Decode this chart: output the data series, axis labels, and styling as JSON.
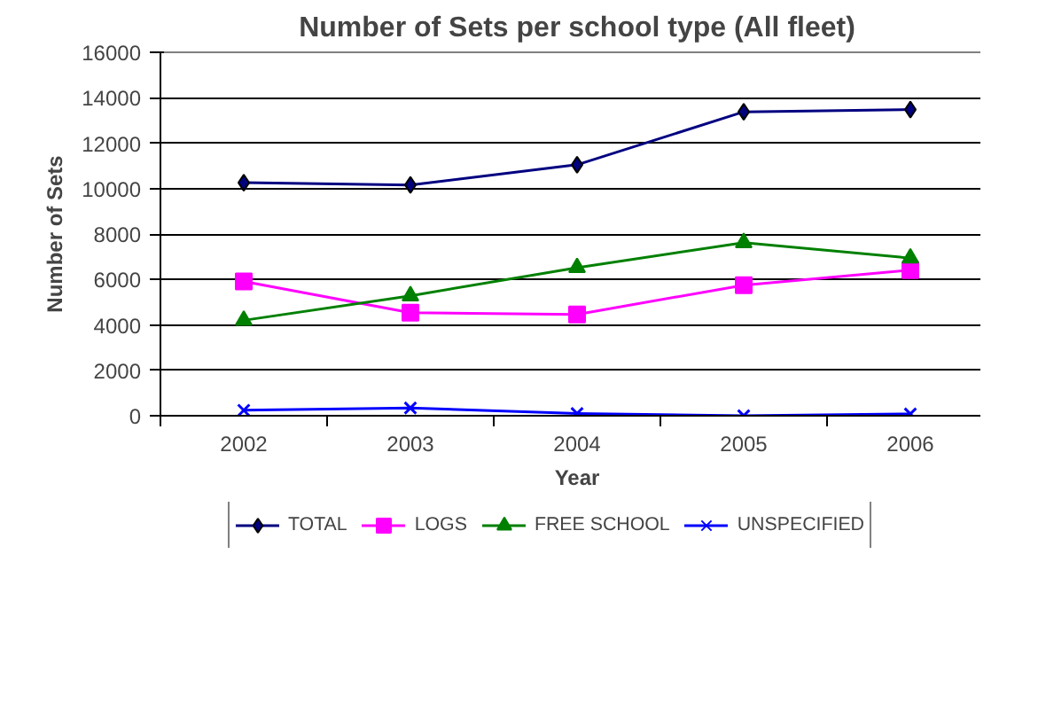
{
  "chart_data": {
    "type": "line",
    "title": "Number of Sets per school type (All fleet)",
    "xlabel": "Year",
    "ylabel": "Number of Sets",
    "categories": [
      "2002",
      "2003",
      "2004",
      "2005",
      "2006"
    ],
    "ylim": [
      0,
      16000
    ],
    "yticks": [
      0,
      2000,
      4000,
      6000,
      8000,
      10000,
      12000,
      14000,
      16000
    ],
    "grid": "y",
    "legend": "bottom",
    "series": [
      {
        "name": "TOTAL",
        "color": "#000080",
        "marker": "diamond",
        "values": [
          10260,
          10160,
          11050,
          13380,
          13480
        ]
      },
      {
        "name": "LOGS",
        "color": "#ff00ff",
        "marker": "square",
        "values": [
          5910,
          4540,
          4460,
          5750,
          6410
        ]
      },
      {
        "name": "FREE SCHOOL",
        "color": "#008000",
        "marker": "triangle",
        "values": [
          4200,
          5280,
          6520,
          7620,
          6940
        ]
      },
      {
        "name": "UNSPECIFIED",
        "color": "#0000ff",
        "marker": "cross",
        "values": [
          240,
          340,
          100,
          0,
          80
        ]
      }
    ]
  }
}
